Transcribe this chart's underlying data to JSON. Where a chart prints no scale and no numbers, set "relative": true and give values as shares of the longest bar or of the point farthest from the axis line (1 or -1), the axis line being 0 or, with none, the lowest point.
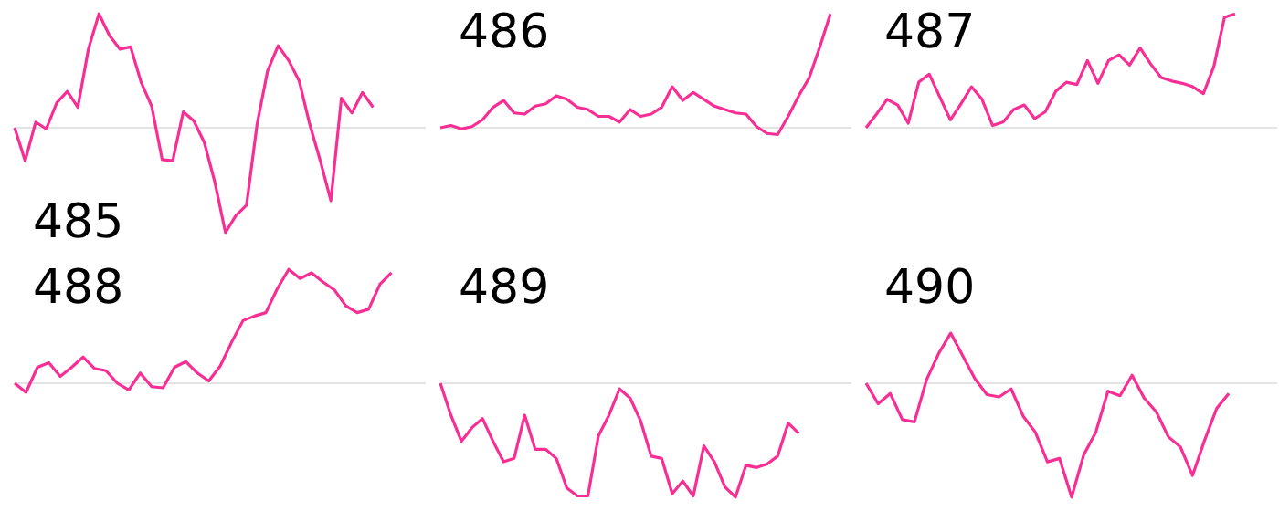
{
  "chart_data": [
    {
      "type": "line",
      "title": "485",
      "color": "#f72f95",
      "relative": true,
      "categories": [
        null,
        null,
        null,
        null,
        null,
        null,
        null,
        null,
        null,
        null,
        null,
        null,
        null,
        null,
        null,
        null,
        null,
        null,
        null,
        null,
        null,
        null,
        null,
        null,
        null,
        null,
        null,
        null,
        null,
        null,
        null,
        null,
        null,
        null,
        null,
        null,
        null,
        null,
        null,
        null
      ],
      "values": [
        0,
        -0.29,
        0.05,
        -0.01,
        0.22,
        0.32,
        0.18,
        0.69,
        1.0,
        0.81,
        0.69,
        0.71,
        0.4,
        0.19,
        -0.28,
        -0.29,
        0.14,
        0.06,
        -0.13,
        -0.48,
        -0.92,
        -0.77,
        -0.68,
        0.03,
        0.5,
        0.72,
        0.59,
        0.41,
        0.03,
        -0.29,
        -0.64,
        0.26,
        0.13,
        0.31,
        0.18,
        null,
        null,
        null,
        null,
        null
      ]
    },
    {
      "type": "line",
      "title": "486",
      "color": "#f72f95",
      "relative": true,
      "categories": [
        null,
        null,
        null,
        null,
        null,
        null,
        null,
        null,
        null,
        null,
        null,
        null,
        null,
        null,
        null,
        null,
        null,
        null,
        null,
        null,
        null,
        null,
        null,
        null,
        null,
        null,
        null,
        null,
        null,
        null,
        null,
        null,
        null,
        null,
        null,
        null,
        null,
        null,
        null,
        null
      ],
      "values": [
        0,
        0.02,
        -0.01,
        0.01,
        0.07,
        0.18,
        0.24,
        0.13,
        0.12,
        0.19,
        0.21,
        0.28,
        0.25,
        0.18,
        0.16,
        0.1,
        0.1,
        0.05,
        0.16,
        0.1,
        0.12,
        0.18,
        0.36,
        0.24,
        0.31,
        0.25,
        0.19,
        0.16,
        0.13,
        0.12,
        0.01,
        -0.05,
        -0.06,
        0.1,
        0.28,
        0.44,
        0.71,
        1.0,
        null,
        null
      ]
    },
    {
      "type": "line",
      "title": "487",
      "color": "#f72f95",
      "relative": true,
      "categories": [
        null,
        null,
        null,
        null,
        null,
        null,
        null,
        null,
        null,
        null,
        null,
        null,
        null,
        null,
        null,
        null,
        null,
        null,
        null,
        null,
        null,
        null,
        null,
        null,
        null,
        null,
        null,
        null,
        null,
        null,
        null,
        null,
        null,
        null,
        null,
        null,
        null,
        null,
        null,
        null
      ],
      "values": [
        0,
        0.12,
        0.25,
        0.2,
        0.04,
        0.4,
        0.47,
        0.27,
        0.07,
        0.21,
        0.36,
        0.25,
        0.02,
        0.05,
        0.16,
        0.2,
        0.08,
        0.14,
        0.32,
        0.4,
        0.38,
        0.59,
        0.39,
        0.59,
        0.64,
        0.55,
        0.7,
        0.56,
        0.44,
        0.41,
        0.39,
        0.36,
        0.3,
        0.54,
        0.97,
        1.0,
        null,
        null,
        null,
        null
      ]
    },
    {
      "type": "line",
      "title": "488",
      "color": "#f72f95",
      "relative": true,
      "categories": [
        null,
        null,
        null,
        null,
        null,
        null,
        null,
        null,
        null,
        null,
        null,
        null,
        null,
        null,
        null,
        null,
        null,
        null,
        null,
        null,
        null,
        null,
        null,
        null,
        null,
        null,
        null,
        null,
        null,
        null,
        null,
        null,
        null,
        null,
        null,
        null,
        null
      ],
      "values": [
        0,
        -0.08,
        0.14,
        0.18,
        0.06,
        0.14,
        0.23,
        0.13,
        0.11,
        0,
        -0.06,
        0.09,
        -0.03,
        -0.04,
        0.14,
        0.19,
        0.09,
        0.02,
        0.15,
        0.36,
        0.55,
        0.59,
        0.62,
        0.83,
        1.0,
        0.92,
        0.97,
        0.89,
        0.82,
        0.68,
        0.62,
        0.65,
        0.87,
        0.97,
        null,
        null,
        null
      ]
    },
    {
      "type": "line",
      "title": "489",
      "color": "#f72f95",
      "relative": true,
      "categories": [
        null,
        null,
        null,
        null,
        null,
        null,
        null,
        null,
        null,
        null,
        null,
        null,
        null,
        null,
        null,
        null,
        null,
        null,
        null,
        null,
        null,
        null,
        null,
        null,
        null,
        null,
        null,
        null,
        null,
        null,
        null,
        null,
        null,
        null,
        null,
        null,
        null,
        null,
        null,
        null
      ],
      "values": [
        0,
        -0.28,
        -0.51,
        -0.39,
        -0.31,
        -0.51,
        -0.69,
        -0.66,
        -0.28,
        -0.58,
        -0.58,
        -0.66,
        -0.92,
        -0.99,
        -0.99,
        -0.46,
        -0.28,
        -0.05,
        -0.13,
        -0.33,
        -0.64,
        -0.66,
        -0.97,
        -0.86,
        -0.99,
        -0.55,
        -0.69,
        -0.91,
        -1.0,
        -0.72,
        -0.74,
        -0.71,
        -0.64,
        -0.35,
        -0.44,
        null,
        null,
        null,
        null,
        null
      ]
    },
    {
      "type": "line",
      "title": "490",
      "color": "#f72f95",
      "relative": true,
      "categories": [
        null,
        null,
        null,
        null,
        null,
        null,
        null,
        null,
        null,
        null,
        null,
        null,
        null,
        null,
        null,
        null,
        null,
        null,
        null,
        null,
        null,
        null,
        null,
        null,
        null,
        null,
        null,
        null,
        null,
        null,
        null,
        null,
        null,
        null,
        null
      ],
      "values": [
        0,
        -0.18,
        -0.09,
        -0.32,
        -0.34,
        0.03,
        0.26,
        0.44,
        0.24,
        0.04,
        -0.1,
        -0.12,
        -0.05,
        -0.29,
        -0.43,
        -0.69,
        -0.66,
        -1.0,
        -0.63,
        -0.43,
        -0.07,
        -0.11,
        0.07,
        -0.13,
        -0.25,
        -0.47,
        -0.56,
        -0.81,
        -0.5,
        -0.22,
        -0.09,
        null,
        null,
        null,
        null
      ]
    }
  ]
}
